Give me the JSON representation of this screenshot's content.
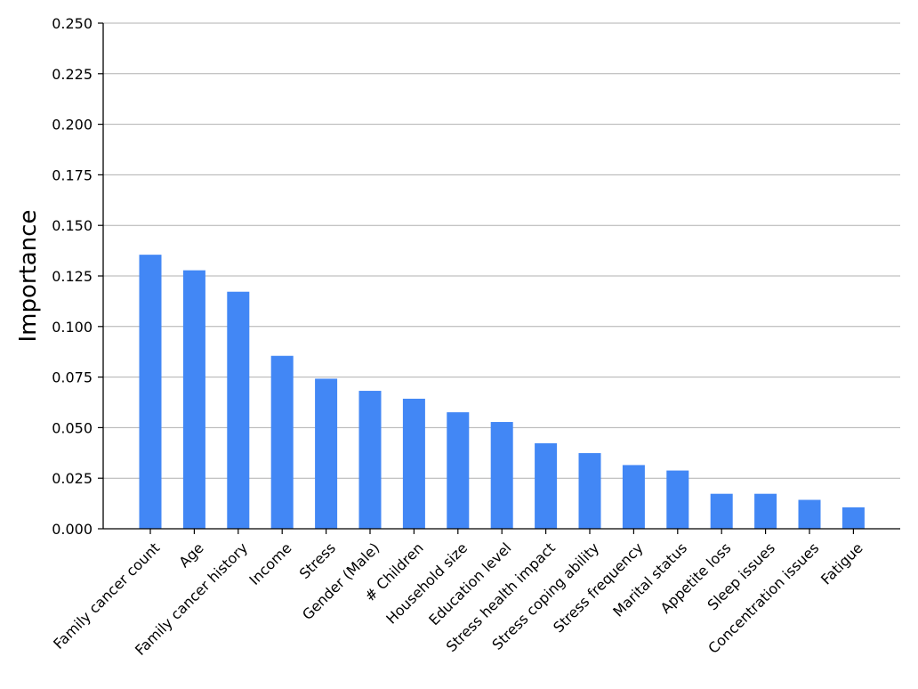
{
  "chart_data": {
    "type": "bar",
    "title": "",
    "xlabel": "",
    "ylabel": "Importance",
    "ylim": [
      0,
      0.25
    ],
    "yticks": [
      "0.000",
      "0.025",
      "0.050",
      "0.075",
      "0.100",
      "0.125",
      "0.150",
      "0.175",
      "0.200",
      "0.225",
      "0.250"
    ],
    "grid": "horizontal",
    "bar_color": "#4287f5",
    "categories": [
      "Family cancer count",
      "Age",
      "Family cancer history",
      "Income",
      "Stress",
      "Gender (Male)",
      "# Children",
      "Household size",
      "Education level",
      "Stress health impact",
      "Stress coping ability",
      "Stress frequency",
      "Marital status",
      "Appetite loss",
      "Sleep issues",
      "Concentration issues",
      "Fatigue"
    ],
    "values": [
      0.1355,
      0.1278,
      0.1172,
      0.0855,
      0.0742,
      0.0682,
      0.0643,
      0.0576,
      0.0528,
      0.0423,
      0.0374,
      0.0315,
      0.0288,
      0.0173,
      0.0173,
      0.0143,
      0.0106
    ]
  }
}
